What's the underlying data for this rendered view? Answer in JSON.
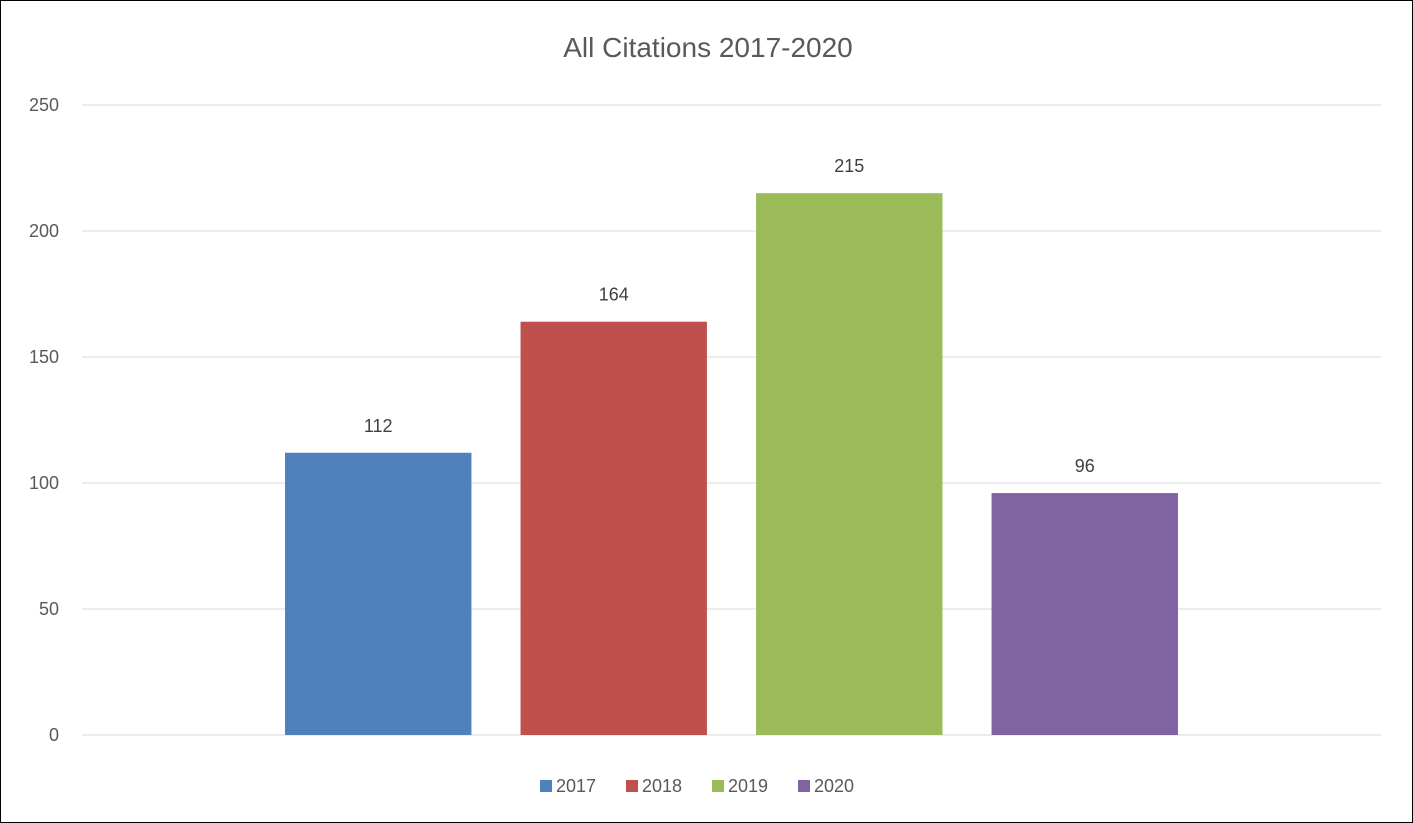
{
  "chart_data": {
    "type": "bar",
    "title": "All Citations 2017-2020",
    "xlabel": "",
    "ylabel": "",
    "ylim": [
      0,
      250
    ],
    "yticks": [
      0,
      50,
      100,
      150,
      200,
      250
    ],
    "grid": true,
    "legend_position": "bottom",
    "series": [
      {
        "name": "2017",
        "value": 112,
        "color": "#4F81BD"
      },
      {
        "name": "2018",
        "value": 164,
        "color": "#C0504D"
      },
      {
        "name": "2019",
        "value": 215,
        "color": "#9BBB59"
      },
      {
        "name": "2020",
        "value": 96,
        "color": "#8064A2"
      }
    ]
  }
}
